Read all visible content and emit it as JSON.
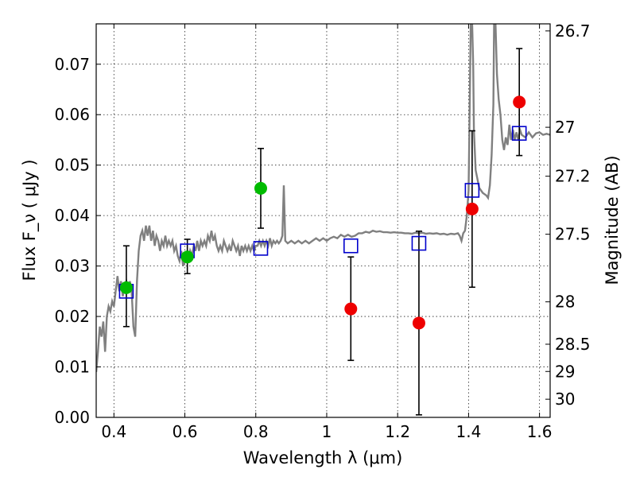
{
  "chart_data": {
    "type": "scatter",
    "title": "",
    "xlabel": "Wavelength  λ (μm)",
    "ylabel": "Flux  F_ν  ( μJy )",
    "y2label": "Magnitude (AB)",
    "xlim": [
      0.35,
      1.63
    ],
    "ylim": [
      0.0,
      0.078
    ],
    "x_ticks": [
      0.4,
      0.6,
      0.8,
      1.0,
      1.2,
      1.4,
      1.6
    ],
    "x_tick_labels": [
      "0.4",
      "0.6",
      "0.8",
      "1",
      "1.2",
      "1.4",
      "1.6"
    ],
    "y_ticks": [
      0.0,
      0.01,
      0.02,
      0.03,
      0.04,
      0.05,
      0.06,
      0.07
    ],
    "y_tick_labels": [
      "0.00",
      "0.01",
      "0.02",
      "0.03",
      "0.04",
      "0.05",
      "0.06",
      "0.07"
    ],
    "y2_ticks": [
      {
        "label": "26.7",
        "flux": 0.0766
      },
      {
        "label": "27",
        "flux": 0.0575
      },
      {
        "label": "27.2",
        "flux": 0.0478
      },
      {
        "label": "27.5",
        "flux": 0.0363
      },
      {
        "label": "28",
        "flux": 0.0229
      },
      {
        "label": "28.5",
        "flux": 0.0145
      },
      {
        "label": "29",
        "flux": 0.0091
      },
      {
        "label": "30",
        "flux": 0.0036
      }
    ],
    "grid": true,
    "colors": {
      "model": "#808080",
      "model_photometry": "#0000cc",
      "detection": "#00bb00",
      "non_detection": "#ee0000",
      "errorbar": "#000000"
    },
    "series": [
      {
        "kind": "line",
        "points": [
          [
            0.35,
            0.009
          ],
          [
            0.355,
            0.013
          ],
          [
            0.36,
            0.018
          ],
          [
            0.365,
            0.016
          ],
          [
            0.37,
            0.019
          ],
          [
            0.375,
            0.013
          ],
          [
            0.38,
            0.02
          ],
          [
            0.385,
            0.022
          ],
          [
            0.39,
            0.021
          ],
          [
            0.395,
            0.023
          ],
          [
            0.4,
            0.022
          ],
          [
            0.405,
            0.025
          ],
          [
            0.41,
            0.028
          ],
          [
            0.415,
            0.025
          ],
          [
            0.42,
            0.027
          ],
          [
            0.425,
            0.024
          ],
          [
            0.43,
            0.026
          ],
          [
            0.435,
            0.027
          ],
          [
            0.44,
            0.025
          ],
          [
            0.445,
            0.027
          ],
          [
            0.45,
            0.025
          ],
          [
            0.455,
            0.018
          ],
          [
            0.46,
            0.016
          ],
          [
            0.465,
            0.027
          ],
          [
            0.47,
            0.033
          ],
          [
            0.475,
            0.036
          ],
          [
            0.48,
            0.037
          ],
          [
            0.485,
            0.035
          ],
          [
            0.49,
            0.038
          ],
          [
            0.495,
            0.036
          ],
          [
            0.5,
            0.038
          ],
          [
            0.505,
            0.035
          ],
          [
            0.51,
            0.037
          ],
          [
            0.515,
            0.034
          ],
          [
            0.52,
            0.036
          ],
          [
            0.525,
            0.035
          ],
          [
            0.53,
            0.033
          ],
          [
            0.535,
            0.035
          ],
          [
            0.54,
            0.034
          ],
          [
            0.545,
            0.036
          ],
          [
            0.55,
            0.034
          ],
          [
            0.555,
            0.035
          ],
          [
            0.56,
            0.034
          ],
          [
            0.565,
            0.035
          ],
          [
            0.57,
            0.033
          ],
          [
            0.575,
            0.034
          ],
          [
            0.58,
            0.032
          ],
          [
            0.585,
            0.031
          ],
          [
            0.59,
            0.033
          ],
          [
            0.595,
            0.03
          ],
          [
            0.6,
            0.031
          ],
          [
            0.605,
            0.032
          ],
          [
            0.61,
            0.031
          ],
          [
            0.615,
            0.033
          ],
          [
            0.62,
            0.032
          ],
          [
            0.625,
            0.034
          ],
          [
            0.63,
            0.033
          ],
          [
            0.635,
            0.035
          ],
          [
            0.64,
            0.033
          ],
          [
            0.645,
            0.035
          ],
          [
            0.65,
            0.034
          ],
          [
            0.655,
            0.035
          ],
          [
            0.66,
            0.034
          ],
          [
            0.665,
            0.036
          ],
          [
            0.67,
            0.035
          ],
          [
            0.675,
            0.037
          ],
          [
            0.68,
            0.035
          ],
          [
            0.685,
            0.036
          ],
          [
            0.69,
            0.034
          ],
          [
            0.695,
            0.033
          ],
          [
            0.7,
            0.034
          ],
          [
            0.705,
            0.033
          ],
          [
            0.71,
            0.035
          ],
          [
            0.715,
            0.034
          ],
          [
            0.72,
            0.033
          ],
          [
            0.725,
            0.034
          ],
          [
            0.73,
            0.033
          ],
          [
            0.735,
            0.035
          ],
          [
            0.74,
            0.034
          ],
          [
            0.745,
            0.033
          ],
          [
            0.75,
            0.034
          ],
          [
            0.755,
            0.032
          ],
          [
            0.76,
            0.034
          ],
          [
            0.765,
            0.033
          ],
          [
            0.77,
            0.034
          ],
          [
            0.775,
            0.033
          ],
          [
            0.78,
            0.034
          ],
          [
            0.785,
            0.033
          ],
          [
            0.79,
            0.034
          ],
          [
            0.795,
            0.033
          ],
          [
            0.8,
            0.034
          ],
          [
            0.805,
            0.034
          ],
          [
            0.81,
            0.035
          ],
          [
            0.815,
            0.034
          ],
          [
            0.82,
            0.035
          ],
          [
            0.825,
            0.034
          ],
          [
            0.83,
            0.035
          ],
          [
            0.835,
            0.034
          ],
          [
            0.84,
            0.0355
          ],
          [
            0.845,
            0.034
          ],
          [
            0.85,
            0.035
          ],
          [
            0.855,
            0.0345
          ],
          [
            0.86,
            0.035
          ],
          [
            0.865,
            0.0345
          ],
          [
            0.87,
            0.035
          ],
          [
            0.875,
            0.036
          ],
          [
            0.879,
            0.046
          ],
          [
            0.883,
            0.035
          ],
          [
            0.89,
            0.0345
          ],
          [
            0.9,
            0.035
          ],
          [
            0.91,
            0.0345
          ],
          [
            0.92,
            0.035
          ],
          [
            0.93,
            0.0345
          ],
          [
            0.94,
            0.035
          ],
          [
            0.95,
            0.0345
          ],
          [
            0.96,
            0.035
          ],
          [
            0.97,
            0.0355
          ],
          [
            0.98,
            0.035
          ],
          [
            0.99,
            0.0355
          ],
          [
            1.0,
            0.035
          ],
          [
            1.01,
            0.0355
          ],
          [
            1.02,
            0.0358
          ],
          [
            1.03,
            0.0355
          ],
          [
            1.04,
            0.0362
          ],
          [
            1.05,
            0.0358
          ],
          [
            1.06,
            0.0362
          ],
          [
            1.07,
            0.0358
          ],
          [
            1.08,
            0.036
          ],
          [
            1.09,
            0.0365
          ],
          [
            1.1,
            0.0365
          ],
          [
            1.11,
            0.0368
          ],
          [
            1.12,
            0.0366
          ],
          [
            1.13,
            0.037
          ],
          [
            1.14,
            0.0368
          ],
          [
            1.15,
            0.0369
          ],
          [
            1.16,
            0.0367
          ],
          [
            1.17,
            0.0367
          ],
          [
            1.18,
            0.0366
          ],
          [
            1.19,
            0.0367
          ],
          [
            1.2,
            0.0366
          ],
          [
            1.21,
            0.0366
          ],
          [
            1.22,
            0.0365
          ],
          [
            1.23,
            0.0365
          ],
          [
            1.24,
            0.0364
          ],
          [
            1.25,
            0.0366
          ],
          [
            1.26,
            0.0365
          ],
          [
            1.27,
            0.0366
          ],
          [
            1.28,
            0.0364
          ],
          [
            1.29,
            0.0365
          ],
          [
            1.3,
            0.0364
          ],
          [
            1.31,
            0.0365
          ],
          [
            1.32,
            0.0363
          ],
          [
            1.33,
            0.0364
          ],
          [
            1.34,
            0.0362
          ],
          [
            1.35,
            0.0364
          ],
          [
            1.36,
            0.0363
          ],
          [
            1.37,
            0.0365
          ],
          [
            1.375,
            0.036
          ],
          [
            1.38,
            0.035
          ],
          [
            1.385,
            0.0365
          ],
          [
            1.39,
            0.037
          ],
          [
            1.395,
            0.04
          ],
          [
            1.4,
            0.045
          ],
          [
            1.403,
            0.06
          ],
          [
            1.406,
            0.078
          ],
          [
            1.41,
            0.078
          ],
          [
            1.413,
            0.07
          ],
          [
            1.415,
            0.057
          ],
          [
            1.42,
            0.049
          ],
          [
            1.43,
            0.0455
          ],
          [
            1.44,
            0.0445
          ],
          [
            1.45,
            0.044
          ],
          [
            1.455,
            0.0435
          ],
          [
            1.46,
            0.046
          ],
          [
            1.465,
            0.052
          ],
          [
            1.47,
            0.062
          ],
          [
            1.472,
            0.078
          ],
          [
            1.476,
            0.078
          ],
          [
            1.48,
            0.068
          ],
          [
            1.485,
            0.063
          ],
          [
            1.49,
            0.06
          ],
          [
            1.495,
            0.055
          ],
          [
            1.5,
            0.053
          ],
          [
            1.505,
            0.0555
          ],
          [
            1.51,
            0.054
          ],
          [
            1.515,
            0.058
          ],
          [
            1.52,
            0.055
          ],
          [
            1.525,
            0.057
          ],
          [
            1.53,
            0.055
          ],
          [
            1.535,
            0.0565
          ],
          [
            1.54,
            0.055
          ],
          [
            1.545,
            0.057
          ],
          [
            1.55,
            0.056
          ],
          [
            1.56,
            0.0555
          ],
          [
            1.57,
            0.0565
          ],
          [
            1.58,
            0.0555
          ],
          [
            1.59,
            0.0563
          ],
          [
            1.6,
            0.0565
          ],
          [
            1.61,
            0.056
          ],
          [
            1.62,
            0.0562
          ],
          [
            1.63,
            0.056
          ]
        ]
      },
      {
        "kind": "model_photometry",
        "points": [
          [
            0.435,
            0.025
          ],
          [
            0.607,
            0.033
          ],
          [
            0.814,
            0.0335
          ],
          [
            1.068,
            0.034
          ],
          [
            1.26,
            0.0345
          ],
          [
            1.41,
            0.045
          ],
          [
            1.543,
            0.0563
          ]
        ]
      },
      {
        "kind": "detection",
        "points": [
          {
            "x": 0.435,
            "y": 0.0257,
            "yerr_low": 0.0077,
            "yerr_high": 0.0083
          },
          {
            "x": 0.607,
            "y": 0.0318,
            "yerr_low": 0.0033,
            "yerr_high": 0.0035
          },
          {
            "x": 0.814,
            "y": 0.0454,
            "yerr_low": 0.0079,
            "yerr_high": 0.0079
          }
        ]
      },
      {
        "kind": "non_detection",
        "points": [
          {
            "x": 1.068,
            "y": 0.0215,
            "yerr_low": 0.0102,
            "yerr_high": 0.0103
          },
          {
            "x": 1.26,
            "y": 0.0187,
            "yerr_low": 0.0182,
            "yerr_high": 0.0182
          },
          {
            "x": 1.41,
            "y": 0.0413,
            "yerr_low": 0.0155,
            "yerr_high": 0.0155
          },
          {
            "x": 1.543,
            "y": 0.0625,
            "yerr_low": 0.0106,
            "yerr_high": 0.0106
          }
        ]
      }
    ]
  }
}
